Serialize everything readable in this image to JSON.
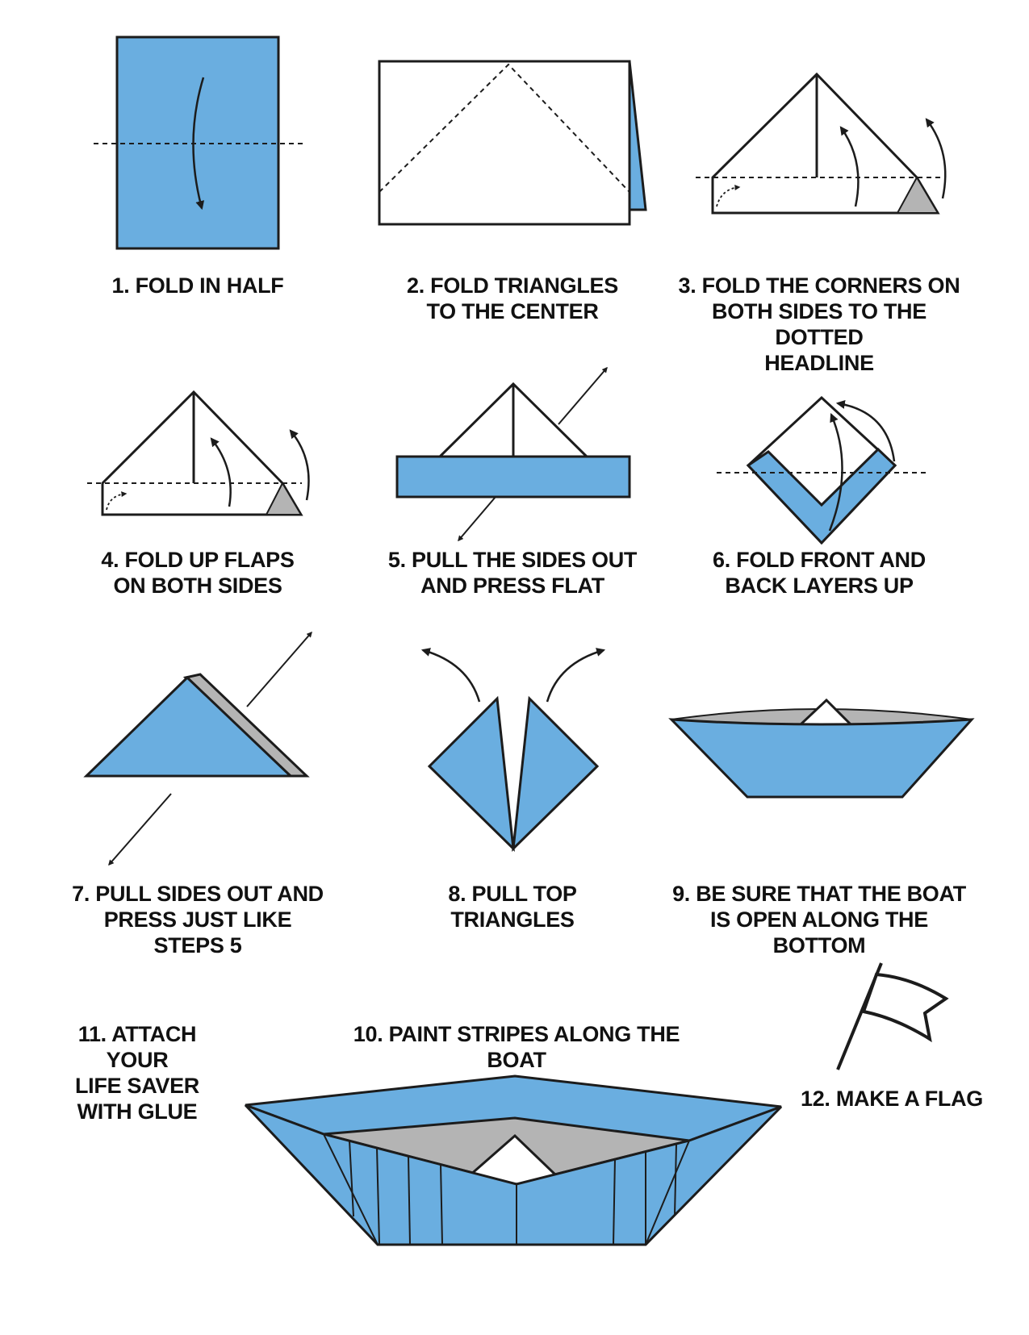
{
  "colors": {
    "paper_blue": "#6aaee0",
    "paper_gray": "#b4b4b4",
    "outline": "#1c1c1c",
    "background": "#ffffff"
  },
  "steps": [
    {
      "id": 1,
      "caption": "1. FOLD IN HALF"
    },
    {
      "id": 2,
      "caption": "2. FOLD TRIANGLES\nTO THE CENTER"
    },
    {
      "id": 3,
      "caption": "3. FOLD THE CORNERS ON\nBOTH SIDES TO THE DOTTED\nHEADLINE"
    },
    {
      "id": 4,
      "caption": "4. FOLD UP FLAPS\nON BOTH SIDES"
    },
    {
      "id": 5,
      "caption": "5. PULL THE SIDES OUT\nAND PRESS FLAT"
    },
    {
      "id": 6,
      "caption": "6. FOLD FRONT AND\nBACK LAYERS UP"
    },
    {
      "id": 7,
      "caption": "7. PULL SIDES OUT AND\nPRESS JUST LIKE STEPS 5"
    },
    {
      "id": 8,
      "caption": "8. PULL TOP\nTRIANGLES"
    },
    {
      "id": 9,
      "caption": "9. BE SURE THAT THE BOAT\nIS OPEN ALONG THE BOTTOM"
    },
    {
      "id": 10,
      "caption": "10. PAINT STRIPES ALONG THE BOAT"
    },
    {
      "id": 11,
      "caption": "11. ATTACH YOUR\nLIFE SAVER\nWITH GLUE"
    },
    {
      "id": 12,
      "caption": "12. MAKE A FLAG"
    }
  ]
}
